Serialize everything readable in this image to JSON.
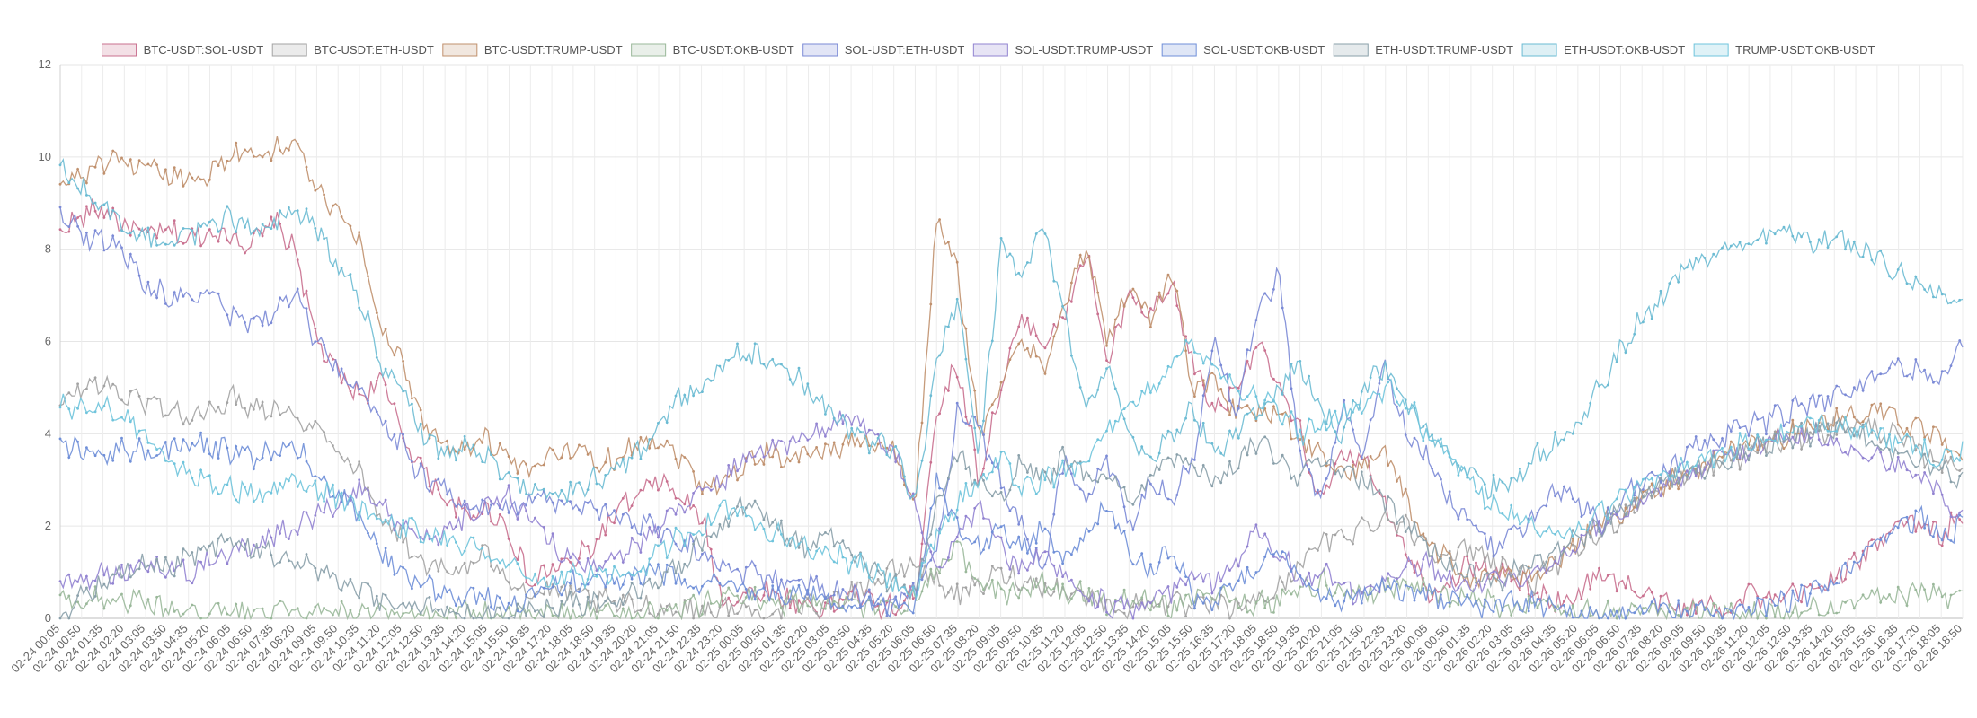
{
  "chart_data": {
    "type": "line",
    "title": "",
    "xlabel": "",
    "ylabel": "",
    "ylim": [
      0,
      12
    ],
    "y_ticks": [
      0,
      2,
      4,
      6,
      8,
      10,
      12
    ],
    "grid": true,
    "legend": "top-center",
    "x_tick_labels": [
      "02-24 00:05",
      "02-24 00:50",
      "02-24 01:35",
      "02-24 02:20",
      "02-24 03:05",
      "02-24 03:50",
      "02-24 04:35",
      "02-24 05:20",
      "02-24 06:05",
      "02-24 06:50",
      "02-24 07:35",
      "02-24 08:20",
      "02-24 09:05",
      "02-24 09:50",
      "02-24 10:35",
      "02-24 11:20",
      "02-24 12:05",
      "02-24 12:50",
      "02-24 13:35",
      "02-24 14:20",
      "02-24 15:05",
      "02-24 15:50",
      "02-24 16:35",
      "02-24 17:20",
      "02-24 18:05",
      "02-24 18:50",
      "02-24 19:35",
      "02-24 20:20",
      "02-24 21:05",
      "02-24 21:50",
      "02-24 22:35",
      "02-24 23:20",
      "02-25 00:05",
      "02-25 00:50",
      "02-25 01:35",
      "02-25 02:20",
      "02-25 03:05",
      "02-25 03:50",
      "02-25 04:35",
      "02-25 05:20",
      "02-25 06:05",
      "02-25 06:50",
      "02-25 07:35",
      "02-25 08:20",
      "02-25 09:05",
      "02-25 09:50",
      "02-25 10:35",
      "02-25 11:20",
      "02-25 12:05",
      "02-25 12:50",
      "02-25 13:35",
      "02-25 14:20",
      "02-25 15:05",
      "02-25 15:50",
      "02-25 16:35",
      "02-25 17:20",
      "02-25 18:05",
      "02-25 18:50",
      "02-25 19:35",
      "02-25 20:20",
      "02-25 21:05",
      "02-25 21:50",
      "02-25 22:35",
      "02-25 23:20",
      "02-26 00:05",
      "02-26 00:50",
      "02-26 01:35",
      "02-26 02:20",
      "02-26 03:05",
      "02-26 03:50",
      "02-26 04:35",
      "02-26 05:20",
      "02-26 06:05",
      "02-26 06:50",
      "02-26 07:35",
      "02-26 08:20",
      "02-26 09:05",
      "02-26 09:50",
      "02-26 10:35",
      "02-26 11:20",
      "02-26 12:05",
      "02-26 12:50",
      "02-26 13:35",
      "02-26 14:20",
      "02-26 15:05",
      "02-26 15:50",
      "02-26 16:35",
      "02-26 17:20",
      "02-26 18:05",
      "02-26 18:50"
    ],
    "series": [
      {
        "name": "BTC-USDT:SOL-USDT",
        "color": "#c9708f",
        "values": [
          8.4,
          8.7,
          8.9,
          8.5,
          8.3,
          8.4,
          8.2,
          8.4,
          8.3,
          8.1,
          8.6,
          8.0,
          6.0,
          5.3,
          4.8,
          5.2,
          4.0,
          3.2,
          2.6,
          2.2,
          2.4,
          1.9,
          0.7,
          1.1,
          1.2,
          1.6,
          2.3,
          2.6,
          3.0,
          2.6,
          2.2,
          0.4,
          0.5,
          0.6,
          0.4,
          0.3,
          0.2,
          0.6,
          0.3,
          0.2,
          0.5,
          4.5,
          5.5,
          3.0,
          5.0,
          6.5,
          6.0,
          6.5,
          8.0,
          5.5,
          7.0,
          6.5,
          7.2,
          5.5,
          4.5,
          5.0,
          6.0,
          5.0,
          4.0,
          2.5,
          3.5,
          3.5,
          2.5,
          1.5,
          0.6,
          0.8,
          1.2,
          1.0,
          0.9,
          0.5,
          0.4,
          0.5,
          1.0,
          0.8,
          0.5,
          0.3,
          0.2,
          0.3,
          0.2,
          0.6,
          0.3,
          0.5,
          0.6,
          0.9,
          1.2,
          1.6,
          2.2,
          2.0,
          1.8,
          2.3
        ]
      },
      {
        "name": "BTC-USDT:ETH-USDT",
        "color": "#a3a3a3",
        "values": [
          4.6,
          5.0,
          5.1,
          4.8,
          4.7,
          4.6,
          4.3,
          4.5,
          4.8,
          4.6,
          4.6,
          4.4,
          4.1,
          3.7,
          3.2,
          2.2,
          1.7,
          1.2,
          1.0,
          1.1,
          1.4,
          0.9,
          0.5,
          0.6,
          0.5,
          0.4,
          0.3,
          0.3,
          0.2,
          0.2,
          0.2,
          0.2,
          0.2,
          0.1,
          0.2,
          0.3,
          0.3,
          0.6,
          0.8,
          1.0,
          1.2,
          0.8,
          0.5,
          0.7,
          1.0,
          0.8,
          0.7,
          0.6,
          0.5,
          0.3,
          0.2,
          0.4,
          0.3,
          0.2,
          0.3,
          0.2,
          0.4,
          0.6,
          1.2,
          1.6,
          1.8,
          2.0,
          2.2,
          2.0,
          1.6,
          1.3,
          1.5,
          1.3,
          1.0,
          0.8,
          1.2,
          1.5,
          1.8,
          2.2,
          2.6,
          2.9,
          3.1,
          3.2,
          3.4,
          3.6,
          3.8,
          3.9,
          4.0,
          4.1,
          4.2,
          4.1,
          3.9,
          3.6,
          3.4,
          3.3
        ]
      },
      {
        "name": "BTC-USDT:TRUMP-USDT",
        "color": "#c0906d",
        "values": [
          9.4,
          9.6,
          9.9,
          9.8,
          9.7,
          9.6,
          9.5,
          9.7,
          10.0,
          10.1,
          10.2,
          10.3,
          9.3,
          8.7,
          8.2,
          6.3,
          5.6,
          4.2,
          3.8,
          3.7,
          3.9,
          3.4,
          3.1,
          3.6,
          3.7,
          3.4,
          3.5,
          3.8,
          3.9,
          3.5,
          2.9,
          3.0,
          3.3,
          3.6,
          3.5,
          3.6,
          3.6,
          3.9,
          3.8,
          3.6,
          2.5,
          8.6,
          7.5,
          4.0,
          5.0,
          6.0,
          5.5,
          6.8,
          8.0,
          6.0,
          7.2,
          6.5,
          7.5,
          5.0,
          5.2,
          4.5,
          4.4,
          4.6,
          3.8,
          3.6,
          3.0,
          3.4,
          3.6,
          2.5,
          1.6,
          1.2,
          0.8,
          1.0,
          0.8,
          1.0,
          1.3,
          1.6,
          2.0,
          2.3,
          2.6,
          2.9,
          3.1,
          3.3,
          3.5,
          3.7,
          3.9,
          4.0,
          4.2,
          4.3,
          4.4,
          4.5,
          4.3,
          4.1,
          3.8,
          3.6
        ]
      },
      {
        "name": "BTC-USDT:OKB-USDT",
        "color": "#9ab89a",
        "values": [
          0.5,
          0.3,
          0.5,
          0.4,
          0.3,
          0.2,
          0.1,
          0.1,
          0.1,
          0.1,
          0.1,
          0.1,
          0.1,
          0.1,
          0.0,
          0.1,
          0.1,
          0.1,
          0.1,
          0.1,
          0.1,
          0.1,
          0.0,
          0.1,
          0.1,
          0.1,
          0.1,
          0.1,
          0.2,
          0.2,
          0.3,
          0.5,
          0.5,
          0.4,
          0.3,
          0.4,
          0.3,
          0.3,
          0.2,
          0.3,
          0.4,
          1.0,
          1.5,
          0.8,
          0.5,
          0.6,
          0.8,
          0.5,
          0.6,
          0.3,
          0.5,
          0.4,
          0.3,
          0.5,
          0.6,
          0.4,
          0.3,
          0.4,
          0.6,
          0.8,
          0.6,
          0.5,
          0.7,
          0.8,
          0.6,
          0.4,
          0.5,
          0.3,
          0.2,
          0.3,
          0.2,
          0.2,
          0.1,
          0.1,
          0.2,
          0.1,
          0.1,
          0.1,
          0.1,
          0.1,
          0.1,
          0.1,
          0.2,
          0.2,
          0.3,
          0.4,
          0.5,
          0.6,
          0.5,
          0.4
        ]
      },
      {
        "name": "SOL-USDT:ETH-USDT",
        "color": "#7b8ad6",
        "values": [
          8.9,
          8.3,
          8.2,
          8.0,
          7.2,
          7.0,
          6.9,
          7.0,
          6.6,
          6.4,
          6.6,
          7.0,
          6.0,
          5.4,
          4.9,
          4.3,
          3.8,
          3.0,
          2.8,
          2.5,
          2.4,
          2.3,
          2.6,
          2.5,
          2.4,
          2.3,
          2.2,
          2.1,
          1.9,
          1.7,
          1.4,
          1.2,
          1.0,
          0.9,
          0.8,
          0.7,
          0.6,
          0.5,
          0.4,
          0.3,
          0.6,
          1.5,
          4.5,
          4.0,
          3.0,
          2.0,
          1.0,
          3.5,
          2.5,
          3.5,
          2.0,
          3.0,
          2.5,
          3.5,
          6.0,
          4.5,
          6.5,
          7.5,
          3.5,
          2.5,
          4.5,
          3.5,
          5.5,
          4.0,
          3.5,
          2.5,
          2.0,
          1.5,
          1.8,
          2.2,
          2.8,
          2.5,
          2.0,
          2.5,
          3.0,
          3.2,
          3.5,
          3.8,
          4.0,
          4.2,
          4.3,
          4.5,
          4.6,
          4.8,
          5.0,
          5.3,
          5.5,
          5.3,
          5.2,
          5.8
        ]
      },
      {
        "name": "SOL-USDT:TRUMP-USDT",
        "color": "#9283d1",
        "values": [
          0.8,
          0.9,
          1.0,
          1.0,
          1.2,
          1.1,
          1.0,
          1.3,
          1.4,
          1.6,
          1.8,
          2.0,
          2.3,
          2.5,
          2.8,
          2.4,
          2.0,
          1.6,
          1.8,
          2.2,
          2.4,
          2.6,
          2.2,
          1.6,
          1.2,
          1.0,
          1.3,
          1.6,
          2.0,
          2.4,
          2.8,
          3.0,
          3.5,
          3.6,
          3.8,
          4.0,
          4.2,
          4.4,
          4.0,
          3.5,
          2.5,
          1.0,
          1.8,
          2.5,
          1.5,
          1.0,
          1.5,
          0.8,
          0.5,
          0.3,
          0.2,
          0.4,
          0.6,
          1.0,
          0.8,
          1.2,
          2.0,
          1.5,
          0.8,
          1.0,
          0.6,
          0.5,
          0.8,
          1.0,
          1.2,
          0.8,
          0.6,
          1.0,
          0.8,
          1.0,
          1.3,
          1.6,
          2.0,
          2.3,
          2.6,
          2.9,
          3.1,
          3.3,
          3.5,
          3.6,
          3.8,
          3.9,
          4.0,
          3.8,
          3.6,
          3.5,
          3.3,
          3.0,
          2.7,
          2.2
        ]
      },
      {
        "name": "SOL-USDT:OKB-USDT",
        "color": "#6f8fd8",
        "values": [
          3.9,
          3.6,
          3.5,
          3.7,
          3.6,
          3.7,
          3.8,
          3.7,
          3.6,
          3.5,
          3.6,
          3.7,
          3.2,
          2.6,
          2.3,
          1.4,
          1.0,
          0.7,
          0.6,
          0.5,
          0.4,
          0.3,
          0.5,
          0.7,
          0.8,
          0.8,
          0.8,
          0.9,
          1.0,
          0.9,
          0.7,
          0.8,
          0.6,
          0.5,
          0.6,
          0.5,
          0.4,
          0.3,
          0.4,
          0.3,
          0.2,
          3.0,
          2.0,
          1.5,
          2.0,
          1.5,
          2.0,
          1.2,
          1.8,
          2.5,
          1.5,
          1.0,
          1.5,
          0.5,
          0.3,
          0.8,
          1.0,
          1.5,
          0.8,
          0.5,
          0.4,
          0.6,
          0.8,
          0.6,
          0.5,
          0.4,
          0.3,
          0.2,
          0.4,
          0.3,
          0.2,
          0.1,
          0.2,
          0.1,
          0.2,
          0.2,
          0.1,
          0.2,
          0.1,
          0.2,
          0.3,
          0.4,
          0.6,
          0.8,
          1.2,
          1.6,
          2.0,
          2.2,
          1.8,
          2.0
        ]
      },
      {
        "name": "ETH-USDT:TRUMP-USDT",
        "color": "#8aa0aa",
        "values": [
          0.0,
          0.5,
          0.8,
          1.0,
          1.2,
          1.1,
          1.3,
          1.5,
          1.6,
          1.5,
          1.4,
          1.3,
          1.0,
          0.8,
          0.6,
          0.4,
          0.3,
          0.2,
          0.2,
          0.1,
          0.1,
          0.1,
          0.2,
          0.2,
          0.3,
          0.3,
          0.4,
          0.5,
          0.8,
          1.2,
          1.6,
          2.0,
          2.5,
          2.2,
          1.8,
          1.5,
          1.8,
          1.4,
          1.0,
          0.8,
          0.5,
          2.5,
          3.5,
          3.0,
          2.5,
          3.5,
          3.0,
          3.5,
          3.0,
          3.2,
          2.5,
          3.0,
          3.6,
          3.2,
          3.0,
          3.4,
          3.8,
          3.5,
          3.0,
          3.4,
          3.2,
          3.0,
          2.5,
          2.0,
          1.5,
          1.2,
          1.0,
          0.8,
          1.0,
          1.2,
          1.5,
          1.8,
          2.0,
          2.3,
          2.6,
          2.9,
          3.1,
          3.3,
          3.5,
          3.7,
          3.8,
          3.9,
          4.0,
          4.1,
          4.0,
          3.8,
          3.6,
          3.4,
          3.2,
          3.0
        ]
      },
      {
        "name": "ETH-USDT:OKB-USDT",
        "color": "#6bbbd3",
        "values": [
          9.9,
          9.3,
          8.9,
          8.5,
          8.3,
          8.2,
          8.3,
          8.5,
          8.7,
          8.5,
          8.6,
          8.8,
          8.5,
          7.5,
          7.0,
          5.5,
          5.0,
          4.0,
          3.5,
          3.8,
          3.5,
          3.0,
          2.8,
          2.6,
          2.8,
          3.0,
          3.2,
          3.6,
          4.2,
          4.8,
          5.0,
          5.5,
          5.8,
          5.6,
          5.3,
          5.0,
          4.5,
          4.0,
          3.8,
          3.6,
          2.5,
          5.5,
          7.0,
          3.5,
          8.0,
          7.5,
          8.5,
          6.5,
          4.5,
          5.5,
          4.0,
          3.5,
          4.0,
          4.5,
          3.5,
          4.0,
          4.5,
          5.0,
          5.5,
          4.5,
          4.0,
          5.0,
          5.5,
          4.5,
          4.0,
          3.5,
          3.0,
          2.8,
          3.0,
          3.5,
          3.8,
          4.2,
          5.0,
          5.8,
          6.5,
          7.0,
          7.6,
          7.8,
          8.0,
          8.2,
          8.3,
          8.4,
          8.1,
          8.3,
          8.0,
          7.8,
          7.5,
          7.2,
          7.0,
          6.8
        ]
      },
      {
        "name": "TRUMP-USDT:OKB-USDT",
        "color": "#6fc4dc",
        "values": [
          4.7,
          4.5,
          4.6,
          4.4,
          4.0,
          3.5,
          3.2,
          3.0,
          2.8,
          2.7,
          2.8,
          3.0,
          2.8,
          2.6,
          2.4,
          2.2,
          2.0,
          1.8,
          1.8,
          1.6,
          1.4,
          1.2,
          0.8,
          0.8,
          0.9,
          1.0,
          0.9,
          0.8,
          1.5,
          1.8,
          2.0,
          2.5,
          2.2,
          2.0,
          1.8,
          1.5,
          1.4,
          1.2,
          1.0,
          0.8,
          0.5,
          1.8,
          2.5,
          3.0,
          3.5,
          2.8,
          3.0,
          3.2,
          3.5,
          4.0,
          4.5,
          5.0,
          5.5,
          6.0,
          5.5,
          5.0,
          4.8,
          4.5,
          4.0,
          4.2,
          4.5,
          4.6,
          5.0,
          4.6,
          4.0,
          3.5,
          3.0,
          2.5,
          2.2,
          2.0,
          1.8,
          2.0,
          2.3,
          2.6,
          2.9,
          3.1,
          3.3,
          3.5,
          3.6,
          3.8,
          3.9,
          4.0,
          4.2,
          4.3,
          4.1,
          3.9,
          3.8,
          3.6,
          3.5,
          3.6
        ]
      }
    ]
  }
}
